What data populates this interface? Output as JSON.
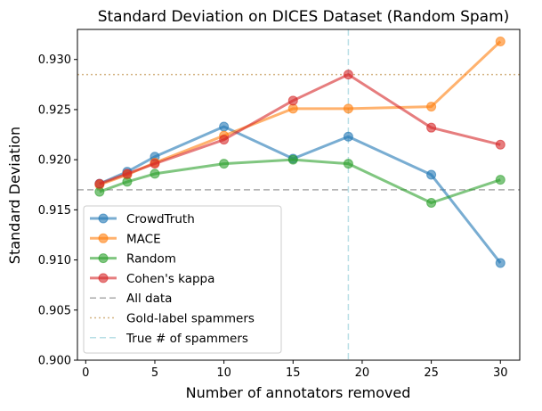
{
  "chart_data": {
    "type": "line",
    "title": "Standard Deviation on DICES Dataset (Random Spam)",
    "xlabel": "Number of annotators removed",
    "ylabel": "Standard Deviation",
    "xlim": [
      -0.6,
      31.4
    ],
    "ylim": [
      0.9,
      0.933
    ],
    "xticks": [
      0,
      5,
      10,
      15,
      20,
      25,
      30
    ],
    "yticks": [
      0.9,
      0.905,
      0.91,
      0.915,
      0.92,
      0.925,
      0.93
    ],
    "ytick_labels": [
      "0.900",
      "0.905",
      "0.910",
      "0.915",
      "0.920",
      "0.925",
      "0.930"
    ],
    "grid": false,
    "legend_position": "lower-left",
    "x": [
      1,
      3,
      5,
      10,
      15,
      19,
      25,
      30
    ],
    "series": [
      {
        "name": "CrowdTruth",
        "color": "#1f77b4",
        "values": [
          0.9176,
          0.9188,
          0.9203,
          0.9233,
          0.9201,
          0.9223,
          0.9185,
          0.9097
        ]
      },
      {
        "name": "MACE",
        "color": "#ff7f0e",
        "values": [
          0.9175,
          0.9185,
          0.9197,
          0.9224,
          0.9251,
          0.9251,
          0.9253,
          0.9318
        ]
      },
      {
        "name": "Random",
        "color": "#2ca02c",
        "values": [
          0.9168,
          0.9178,
          0.9186,
          0.9196,
          0.92,
          0.9196,
          0.9157,
          0.918
        ]
      },
      {
        "name": "Cohen's kappa",
        "color": "#d62728",
        "values": [
          0.9176,
          0.9186,
          0.9196,
          0.922,
          0.9259,
          0.9285,
          0.9232,
          0.9215
        ]
      }
    ],
    "reference_lines": [
      {
        "name": "All data",
        "orientation": "horizontal",
        "value": 0.917,
        "color": "#aaaaaa",
        "style": "dashed"
      },
      {
        "name": "Gold-label spammers",
        "orientation": "horizontal",
        "value": 0.9285,
        "color": "#d4b483",
        "style": "dotted"
      },
      {
        "name": "True # of spammers",
        "orientation": "vertical",
        "value": 19,
        "color": "#b9dfe6",
        "style": "dashed"
      }
    ]
  }
}
